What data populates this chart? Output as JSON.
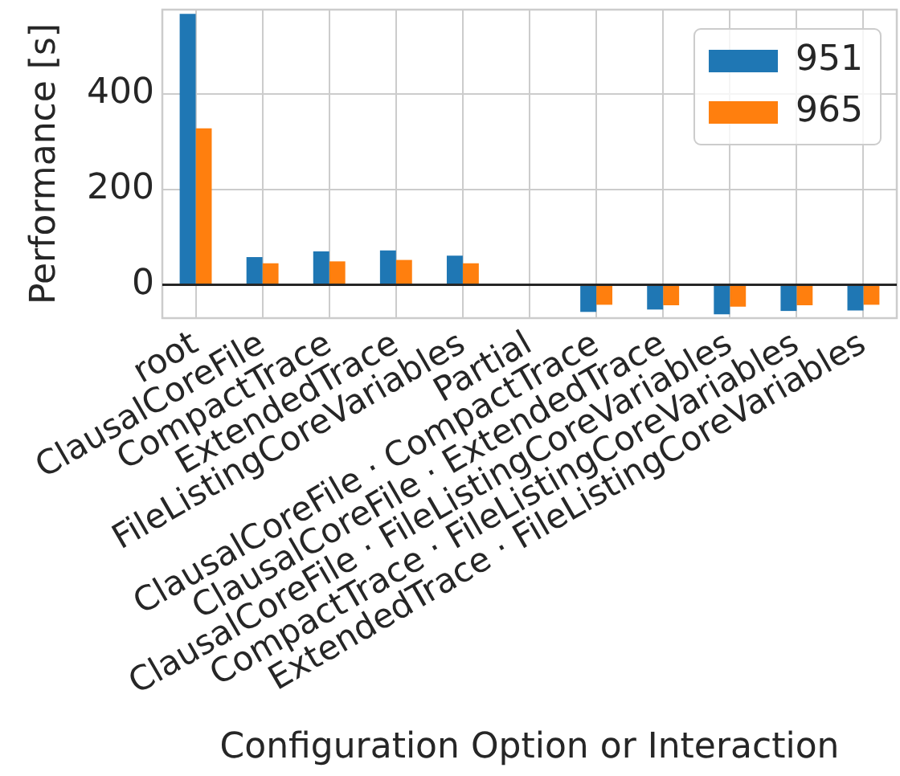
{
  "chart_data": {
    "type": "bar",
    "xlabel": "Configuration Option or Interaction",
    "ylabel": "Performance [s]",
    "categories": [
      "root",
      "ClausalCoreFile",
      "CompactTrace",
      "ExtendedTrace",
      "FileListingCoreVariables",
      "Partial",
      "ClausalCoreFile · CompactTrace",
      "ClausalCoreFile · ExtendedTrace",
      "ClausalCoreFile · FileListingCoreVariables",
      "CompactTrace · FileListingCoreVariables",
      "ExtendedTrace · FileListingCoreVariables"
    ],
    "series": [
      {
        "name": "951",
        "color": "#1f77b4",
        "values": [
          568,
          58,
          70,
          72,
          61,
          null,
          -57,
          -52,
          -62,
          -55,
          -54
        ]
      },
      {
        "name": "965",
        "color": "#ff7f0e",
        "values": [
          328,
          45,
          49,
          52,
          45,
          null,
          -42,
          -43,
          -46,
          -43,
          -42
        ]
      }
    ],
    "ylim": [
      -70,
      577
    ],
    "yticks": [
      0,
      200,
      400
    ],
    "grid": true,
    "legend": "top right",
    "ref_lines": [
      {
        "axis": "y",
        "value": 0,
        "color": "#262626"
      }
    ]
  }
}
